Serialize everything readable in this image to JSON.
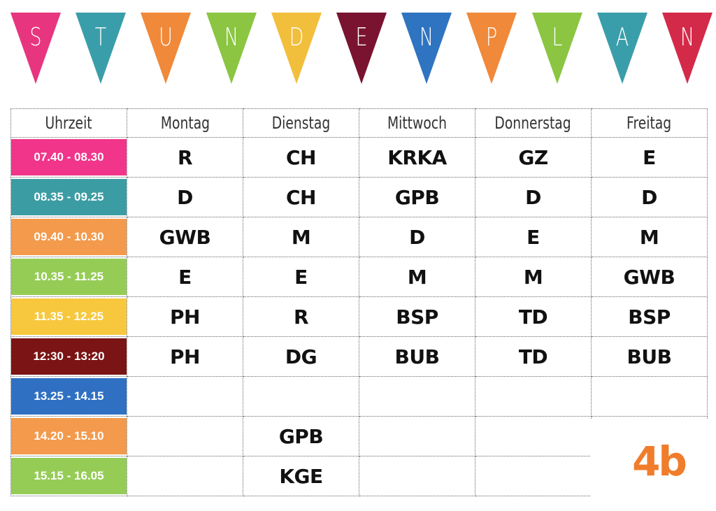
{
  "title": {
    "letters": [
      "S",
      "T",
      "U",
      "N",
      "D",
      "E",
      "N",
      "P",
      "L",
      "A",
      "N"
    ],
    "colors": [
      "#e8357f",
      "#3a9eaa",
      "#f0893a",
      "#8bc541",
      "#f2bf3c",
      "#7a1330",
      "#2f74c0",
      "#f0893a",
      "#8bc541",
      "#3a9eaa",
      "#d42a4a"
    ]
  },
  "table": {
    "headers": [
      "Uhrzeit",
      "Montag",
      "Dienstag",
      "Mittwoch",
      "Donnerstag",
      "Freitag"
    ],
    "rows": [
      {
        "time": "07.40 - 08.30",
        "color": "#f0358a",
        "cells": [
          "R",
          "CH",
          "KRKA",
          "GZ",
          "E"
        ]
      },
      {
        "time": "08.35 - 09.25",
        "color": "#3c9ca4",
        "cells": [
          "D",
          "CH",
          "GPB",
          "D",
          "D"
        ]
      },
      {
        "time": "09.40 - 10.30",
        "color": "#f39a4c",
        "cells": [
          "GWB",
          "M",
          "D",
          "E",
          "M"
        ]
      },
      {
        "time": "10.35 - 11.25",
        "color": "#95cc56",
        "cells": [
          "E",
          "E",
          "M",
          "M",
          "GWB"
        ]
      },
      {
        "time": "11.35 - 12.25",
        "color": "#f7c83d",
        "cells": [
          "PH",
          "R",
          "BSP",
          "TD",
          "BSP"
        ]
      },
      {
        "time": "12:30 - 13:20",
        "color": "#7b1414",
        "cells": [
          "PH",
          "DG",
          "BUB",
          "TD",
          "BUB"
        ]
      },
      {
        "time": "13.25 - 14.15",
        "color": "#2f70c2",
        "cells": [
          "",
          "",
          "",
          "",
          ""
        ]
      },
      {
        "time": "14.20 - 15.10",
        "color": "#f39a4c",
        "cells": [
          "",
          "GPB",
          "",
          "",
          ""
        ]
      },
      {
        "time": "15.15 - 16.05",
        "color": "#95cc56",
        "cells": [
          "",
          "KGE",
          "",
          "",
          ""
        ]
      }
    ]
  },
  "logo": {
    "text": "4b"
  }
}
